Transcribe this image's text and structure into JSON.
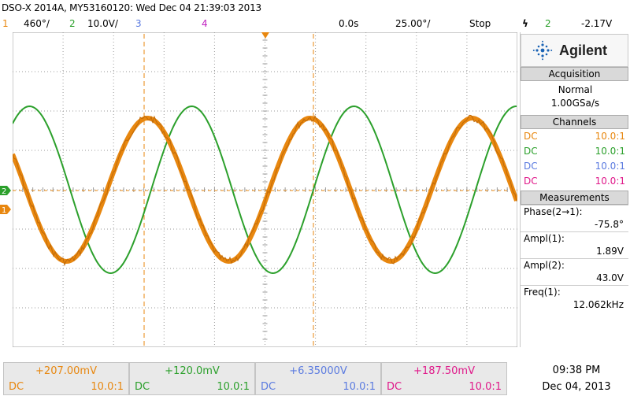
{
  "title": "DSO-X 2014A, MY53160120: Wed Dec 04 21:39:03 2013",
  "status": {
    "ch1_num": "1",
    "ch1_scale": "460°/",
    "ch2_num": "2",
    "ch2_scale": "10.0V/",
    "ch3_num": "3",
    "ch4_num": "4",
    "time_offset": "0.0s",
    "time_scale": "25.00°/",
    "run_state": "Stop",
    "trigger_icon": "ϟ",
    "trigger_source": "2",
    "trigger_level": "-2.17V"
  },
  "brand": {
    "name": "Agilent"
  },
  "acquisition": {
    "header": "Acquisition",
    "mode": "Normal",
    "rate": "1.00GSa/s"
  },
  "channels": {
    "header": "Channels",
    "rows": [
      {
        "coupling": "DC",
        "probe": "10.0:1",
        "color": "#e8870f"
      },
      {
        "coupling": "DC",
        "probe": "10.0:1",
        "color": "#2ca02c"
      },
      {
        "coupling": "DC",
        "probe": "10.0:1",
        "color": "#5b7be0"
      },
      {
        "coupling": "DC",
        "probe": "10.0:1",
        "color": "#e0198a"
      }
    ]
  },
  "measurements": {
    "header": "Measurements",
    "items": [
      {
        "label": "Phase(2→1):",
        "value": "-75.8°"
      },
      {
        "label": "Ampl(1):",
        "value": "1.89V"
      },
      {
        "label": "Ampl(2):",
        "value": "43.0V"
      },
      {
        "label": "Freq(1):",
        "value": "12.062kHz"
      }
    ]
  },
  "bottom_channels": [
    {
      "offset": "+207.00mV",
      "coupling": "DC",
      "probe": "10.0:1",
      "color": "#e8870f"
    },
    {
      "offset": "+120.0mV",
      "coupling": "DC",
      "probe": "10.0:1",
      "color": "#2ca02c"
    },
    {
      "offset": "+6.35000V",
      "coupling": "DC",
      "probe": "10.0:1",
      "color": "#5b7be0"
    },
    {
      "offset": "+187.50mV",
      "coupling": "DC",
      "probe": "10.0:1",
      "color": "#e0198a"
    }
  ],
  "clock": {
    "time": "09:38 PM",
    "date": "Dec 04, 2013"
  },
  "left_markers": {
    "ch2": "2",
    "ch1": "1"
  },
  "colors": {
    "ch1": "#e8870f",
    "ch2": "#2ca02c",
    "ch3": "#5b7be0",
    "ch4": "#e0198a",
    "grid": "#9a9a9a"
  }
}
